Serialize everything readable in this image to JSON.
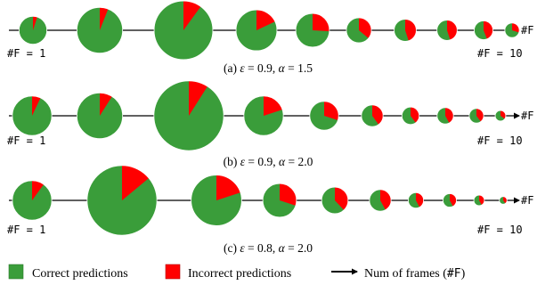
{
  "colors": {
    "correct": "#3a9d3a",
    "incorrect": "#ff0000",
    "line": "#000000"
  },
  "chart_data": [
    {
      "type": "pie",
      "caption": "(a) ε = 0.9, α = 1.5",
      "caption_parts": {
        "prefix": "(a) ",
        "eps_sym": "ε",
        "eps_val": " = 0.9, ",
        "alpha_sym": "α",
        "alpha_val": " = 1.5"
      },
      "start_label": "#F = 1",
      "end_label": "#F = 10",
      "frames": [
        1,
        2,
        3,
        4,
        5,
        6,
        7,
        8,
        9,
        10
      ],
      "relative_size": [
        0.58,
        0.95,
        1.22,
        0.85,
        0.7,
        0.52,
        0.46,
        0.42,
        0.39,
        0.3
      ],
      "incorrect_fraction": [
        0.05,
        0.06,
        0.1,
        0.18,
        0.26,
        0.36,
        0.45,
        0.45,
        0.44,
        0.3
      ]
    },
    {
      "type": "pie",
      "caption": "(b) ε = 0.9, α = 2.0",
      "caption_parts": {
        "prefix": "(b) ",
        "eps_sym": "ε",
        "eps_val": " = 0.9, ",
        "alpha_sym": "α",
        "alpha_val": " = 2.0"
      },
      "start_label": "#F = 1",
      "end_label": "#F = 10",
      "frames": [
        1,
        2,
        3,
        4,
        5,
        6,
        7,
        8,
        9,
        10
      ],
      "relative_size": [
        0.82,
        0.95,
        1.45,
        0.82,
        0.6,
        0.45,
        0.36,
        0.34,
        0.3,
        0.22
      ],
      "incorrect_fraction": [
        0.07,
        0.09,
        0.09,
        0.2,
        0.3,
        0.4,
        0.4,
        0.42,
        0.4,
        0.35
      ]
    },
    {
      "type": "pie",
      "caption": "(c) ε = 0.8, α = 2.0",
      "caption_parts": {
        "prefix": "(c) ",
        "eps_sym": "ε",
        "eps_val": " = 0.8, ",
        "alpha_sym": "α",
        "alpha_val": " = 2.0"
      },
      "start_label": "#F = 1",
      "end_label": "#F = 10",
      "frames": [
        1,
        2,
        3,
        4,
        5,
        6,
        7,
        8,
        9,
        10
      ],
      "relative_size": [
        0.82,
        1.45,
        1.05,
        0.7,
        0.55,
        0.45,
        0.32,
        0.28,
        0.22,
        0.16
      ],
      "incorrect_fraction": [
        0.1,
        0.14,
        0.2,
        0.3,
        0.38,
        0.42,
        0.42,
        0.42,
        0.42,
        0.4
      ]
    }
  ],
  "legend": {
    "correct_label": "Correct predictions",
    "incorrect_label": "Incorrect predictions",
    "axis_label_prefix": "Num of frames (",
    "axis_label_mono": "#F",
    "axis_label_suffix": ")",
    "axis_short": "#F"
  }
}
